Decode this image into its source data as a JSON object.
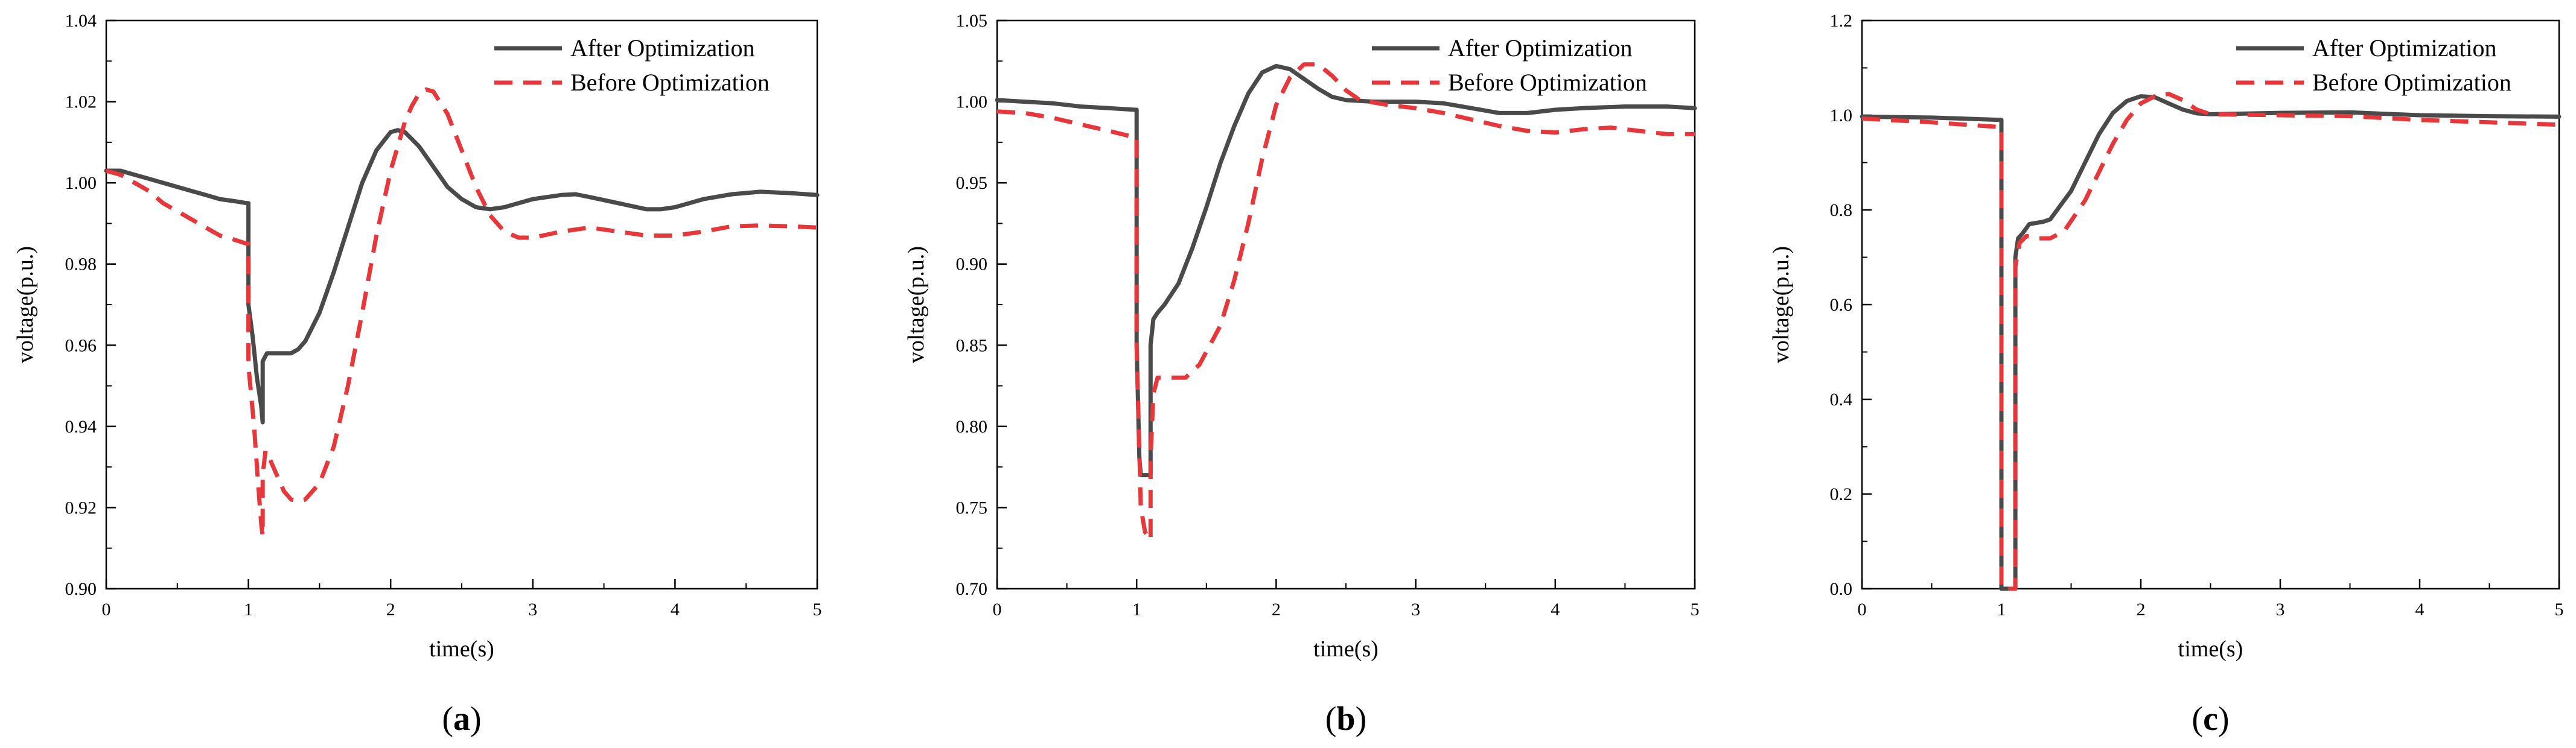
{
  "chart_data": [
    {
      "type": "line",
      "caption": "a",
      "xlabel": "time(s)",
      "ylabel": "voltage(p.u.)",
      "xlim": [
        0,
        5
      ],
      "ylim": [
        0.9,
        1.04
      ],
      "xticks": [
        0,
        1,
        2,
        3,
        4,
        5
      ],
      "yticks": [
        0.9,
        0.92,
        0.94,
        0.96,
        0.98,
        1.0,
        1.02,
        1.04
      ],
      "ytick_labels": [
        "0.90",
        "0.92",
        "0.94",
        "0.96",
        "0.98",
        "1.00",
        "1.02",
        "1.04"
      ],
      "legend_position": "top-right",
      "grid": false,
      "series": [
        {
          "name": "After Optimization",
          "color": "#4a4a4a",
          "style": "solid",
          "points": [
            [
              0,
              1.003
            ],
            [
              0.1,
              1.003
            ],
            [
              0.2,
              1.002
            ],
            [
              0.3,
              1.001
            ],
            [
              0.4,
              1.0
            ],
            [
              0.5,
              0.999
            ],
            [
              0.6,
              0.998
            ],
            [
              0.7,
              0.997
            ],
            [
              0.8,
              0.996
            ],
            [
              0.9,
              0.9955
            ],
            [
              0.99,
              0.995
            ],
            [
              1.0,
              0.995
            ],
            [
              1.0,
              0.97
            ],
            [
              1.03,
              0.962
            ],
            [
              1.06,
              0.952
            ],
            [
              1.09,
              0.945
            ],
            [
              1.1,
              0.941
            ],
            [
              1.1,
              0.956
            ],
            [
              1.13,
              0.958
            ],
            [
              1.2,
              0.958
            ],
            [
              1.3,
              0.958
            ],
            [
              1.35,
              0.959
            ],
            [
              1.4,
              0.961
            ],
            [
              1.5,
              0.968
            ],
            [
              1.6,
              0.978
            ],
            [
              1.7,
              0.989
            ],
            [
              1.8,
              1.0
            ],
            [
              1.9,
              1.008
            ],
            [
              2.0,
              1.0125
            ],
            [
              2.05,
              1.013
            ],
            [
              2.1,
              1.0125
            ],
            [
              2.2,
              1.009
            ],
            [
              2.3,
              1.004
            ],
            [
              2.4,
              0.999
            ],
            [
              2.5,
              0.996
            ],
            [
              2.6,
              0.994
            ],
            [
              2.7,
              0.9935
            ],
            [
              2.8,
              0.994
            ],
            [
              2.9,
              0.995
            ],
            [
              3.0,
              0.996
            ],
            [
              3.2,
              0.997
            ],
            [
              3.3,
              0.9972
            ],
            [
              3.4,
              0.9965
            ],
            [
              3.6,
              0.995
            ],
            [
              3.8,
              0.9935
            ],
            [
              3.9,
              0.9935
            ],
            [
              4.0,
              0.994
            ],
            [
              4.2,
              0.996
            ],
            [
              4.4,
              0.9972
            ],
            [
              4.6,
              0.9978
            ],
            [
              4.8,
              0.9975
            ],
            [
              5.0,
              0.997
            ]
          ]
        },
        {
          "name": "Before Optimization",
          "color": "#e8373a",
          "style": "dashed",
          "points": [
            [
              0,
              1.003
            ],
            [
              0.1,
              1.002
            ],
            [
              0.2,
              1.0
            ],
            [
              0.3,
              0.998
            ],
            [
              0.4,
              0.995
            ],
            [
              0.5,
              0.993
            ],
            [
              0.6,
              0.991
            ],
            [
              0.7,
              0.989
            ],
            [
              0.8,
              0.987
            ],
            [
              0.9,
              0.986
            ],
            [
              0.99,
              0.985
            ],
            [
              1.0,
              0.985
            ],
            [
              1.0,
              0.955
            ],
            [
              1.04,
              0.94
            ],
            [
              1.07,
              0.925
            ],
            [
              1.09,
              0.916
            ],
            [
              1.1,
              0.913
            ],
            [
              1.1,
              0.928
            ],
            [
              1.12,
              0.934
            ],
            [
              1.15,
              0.932
            ],
            [
              1.2,
              0.928
            ],
            [
              1.25,
              0.924
            ],
            [
              1.3,
              0.922
            ],
            [
              1.35,
              0.9215
            ],
            [
              1.4,
              0.922
            ],
            [
              1.5,
              0.926
            ],
            [
              1.6,
              0.935
            ],
            [
              1.7,
              0.95
            ],
            [
              1.8,
              0.968
            ],
            [
              1.9,
              0.987
            ],
            [
              2.0,
              1.003
            ],
            [
              2.1,
              1.015
            ],
            [
              2.15,
              1.019
            ],
            [
              2.2,
              1.022
            ],
            [
              2.25,
              1.023
            ],
            [
              2.3,
              1.0225
            ],
            [
              2.4,
              1.017
            ],
            [
              2.5,
              1.008
            ],
            [
              2.6,
              0.999
            ],
            [
              2.7,
              0.992
            ],
            [
              2.8,
              0.988
            ],
            [
              2.9,
              0.9865
            ],
            [
              3.0,
              0.9865
            ],
            [
              3.2,
              0.988
            ],
            [
              3.4,
              0.989
            ],
            [
              3.6,
              0.988
            ],
            [
              3.8,
              0.987
            ],
            [
              4.0,
              0.987
            ],
            [
              4.2,
              0.988
            ],
            [
              4.4,
              0.9893
            ],
            [
              4.6,
              0.9895
            ],
            [
              4.8,
              0.9893
            ],
            [
              5.0,
              0.989
            ]
          ]
        }
      ]
    },
    {
      "type": "line",
      "caption": "b",
      "xlabel": "time(s)",
      "ylabel": "voltage(p.u.)",
      "xlim": [
        0,
        5
      ],
      "ylim": [
        0.7,
        1.05
      ],
      "xticks": [
        0,
        1,
        2,
        3,
        4,
        5
      ],
      "yticks": [
        0.7,
        0.75,
        0.8,
        0.85,
        0.9,
        0.95,
        1.0,
        1.05
      ],
      "ytick_labels": [
        "0.70",
        "0.75",
        "0.80",
        "0.85",
        "0.90",
        "0.95",
        "1.00",
        "1.05"
      ],
      "legend_position": "top-right",
      "grid": false,
      "series": [
        {
          "name": "After Optimization",
          "color": "#4a4a4a",
          "style": "solid",
          "points": [
            [
              0,
              1.001
            ],
            [
              0.2,
              1.0
            ],
            [
              0.4,
              0.999
            ],
            [
              0.6,
              0.997
            ],
            [
              0.8,
              0.996
            ],
            [
              0.99,
              0.995
            ],
            [
              1.0,
              0.995
            ],
            [
              1.0,
              0.85
            ],
            [
              1.02,
              0.78
            ],
            [
              1.03,
              0.77
            ],
            [
              1.1,
              0.77
            ],
            [
              1.1,
              0.85
            ],
            [
              1.12,
              0.866
            ],
            [
              1.15,
              0.87
            ],
            [
              1.2,
              0.875
            ],
            [
              1.3,
              0.888
            ],
            [
              1.4,
              0.91
            ],
            [
              1.5,
              0.935
            ],
            [
              1.6,
              0.962
            ],
            [
              1.7,
              0.985
            ],
            [
              1.8,
              1.005
            ],
            [
              1.9,
              1.018
            ],
            [
              2.0,
              1.022
            ],
            [
              2.1,
              1.02
            ],
            [
              2.2,
              1.014
            ],
            [
              2.3,
              1.008
            ],
            [
              2.4,
              1.003
            ],
            [
              2.5,
              1.001
            ],
            [
              2.7,
              1.0
            ],
            [
              3.0,
              1.0
            ],
            [
              3.2,
              0.999
            ],
            [
              3.4,
              0.996
            ],
            [
              3.6,
              0.993
            ],
            [
              3.8,
              0.993
            ],
            [
              4.0,
              0.995
            ],
            [
              4.2,
              0.996
            ],
            [
              4.5,
              0.997
            ],
            [
              4.8,
              0.997
            ],
            [
              5.0,
              0.996
            ]
          ]
        },
        {
          "name": "Before Optimization",
          "color": "#e8373a",
          "style": "dashed",
          "points": [
            [
              0,
              0.994
            ],
            [
              0.2,
              0.993
            ],
            [
              0.4,
              0.99
            ],
            [
              0.6,
              0.986
            ],
            [
              0.8,
              0.982
            ],
            [
              0.99,
              0.978
            ],
            [
              1.0,
              0.978
            ],
            [
              1.0,
              0.85
            ],
            [
              1.03,
              0.75
            ],
            [
              1.06,
              0.735
            ],
            [
              1.1,
              0.73
            ],
            [
              1.1,
              0.78
            ],
            [
              1.12,
              0.82
            ],
            [
              1.15,
              0.83
            ],
            [
              1.25,
              0.83
            ],
            [
              1.35,
              0.83
            ],
            [
              1.45,
              0.838
            ],
            [
              1.6,
              0.862
            ],
            [
              1.7,
              0.89
            ],
            [
              1.8,
              0.925
            ],
            [
              1.9,
              0.965
            ],
            [
              2.0,
              0.998
            ],
            [
              2.1,
              1.015
            ],
            [
              2.2,
              1.023
            ],
            [
              2.3,
              1.023
            ],
            [
              2.4,
              1.016
            ],
            [
              2.5,
              1.007
            ],
            [
              2.6,
              1.001
            ],
            [
              2.8,
              0.998
            ],
            [
              3.0,
              0.996
            ],
            [
              3.2,
              0.993
            ],
            [
              3.4,
              0.989
            ],
            [
              3.6,
              0.985
            ],
            [
              3.8,
              0.982
            ],
            [
              4.0,
              0.981
            ],
            [
              4.2,
              0.983
            ],
            [
              4.4,
              0.984
            ],
            [
              4.6,
              0.982
            ],
            [
              4.8,
              0.98
            ],
            [
              5.0,
              0.98
            ]
          ]
        }
      ]
    },
    {
      "type": "line",
      "caption": "c",
      "xlabel": "time(s)",
      "ylabel": "voltage(p.u.)",
      "xlim": [
        0,
        5
      ],
      "ylim": [
        0.0,
        1.2
      ],
      "xticks": [
        0,
        1,
        2,
        3,
        4,
        5
      ],
      "yticks": [
        0.0,
        0.2,
        0.4,
        0.6,
        0.8,
        1.0,
        1.2
      ],
      "ytick_labels": [
        "0.0",
        "0.2",
        "0.4",
        "0.6",
        "0.8",
        "1.0",
        "1.2"
      ],
      "legend_position": "top-right",
      "grid": false,
      "series": [
        {
          "name": "After Optimization",
          "color": "#4a4a4a",
          "style": "solid",
          "points": [
            [
              0,
              0.997
            ],
            [
              0.5,
              0.995
            ],
            [
              0.99,
              0.99
            ],
            [
              1.0,
              0.99
            ],
            [
              1.0,
              0.0
            ],
            [
              1.1,
              0.0
            ],
            [
              1.1,
              0.7
            ],
            [
              1.12,
              0.74
            ],
            [
              1.15,
              0.75
            ],
            [
              1.2,
              0.77
            ],
            [
              1.3,
              0.775
            ],
            [
              1.35,
              0.78
            ],
            [
              1.5,
              0.84
            ],
            [
              1.6,
              0.9
            ],
            [
              1.7,
              0.96
            ],
            [
              1.8,
              1.005
            ],
            [
              1.9,
              1.03
            ],
            [
              2.0,
              1.04
            ],
            [
              2.1,
              1.038
            ],
            [
              2.2,
              1.025
            ],
            [
              2.3,
              1.012
            ],
            [
              2.4,
              1.004
            ],
            [
              2.5,
              1.002
            ],
            [
              3.0,
              1.005
            ],
            [
              3.5,
              1.006
            ],
            [
              4.0,
              1.0
            ],
            [
              4.5,
              0.998
            ],
            [
              5.0,
              0.997
            ]
          ]
        },
        {
          "name": "Before Optimization",
          "color": "#e8373a",
          "style": "dashed",
          "points": [
            [
              0,
              0.993
            ],
            [
              0.5,
              0.985
            ],
            [
              0.99,
              0.975
            ],
            [
              1.0,
              0.975
            ],
            [
              1.0,
              0.0
            ],
            [
              1.1,
              0.0
            ],
            [
              1.1,
              0.68
            ],
            [
              1.13,
              0.73
            ],
            [
              1.18,
              0.745
            ],
            [
              1.25,
              0.74
            ],
            [
              1.35,
              0.74
            ],
            [
              1.45,
              0.755
            ],
            [
              1.6,
              0.82
            ],
            [
              1.7,
              0.88
            ],
            [
              1.8,
              0.94
            ],
            [
              1.9,
              0.99
            ],
            [
              2.0,
              1.025
            ],
            [
              2.1,
              1.04
            ],
            [
              2.2,
              1.045
            ],
            [
              2.3,
              1.032
            ],
            [
              2.4,
              1.012
            ],
            [
              2.5,
              1.002
            ],
            [
              3.0,
              1.0
            ],
            [
              3.5,
              0.998
            ],
            [
              4.0,
              0.99
            ],
            [
              4.5,
              0.985
            ],
            [
              5.0,
              0.98
            ]
          ]
        }
      ]
    }
  ]
}
